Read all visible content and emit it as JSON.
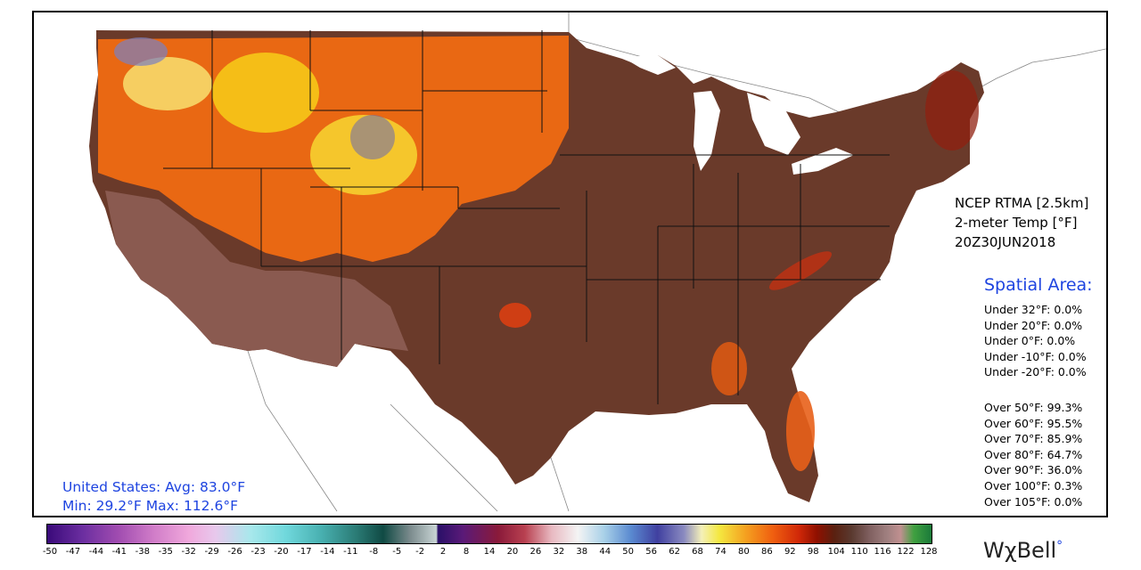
{
  "info": {
    "line1": "NCEP RTMA [2.5km]",
    "line2": "2-meter Temp [°F]",
    "line3": "20Z30JUN2018"
  },
  "spatial": {
    "title": "Spatial Area:",
    "under": [
      "Under 32°F: 0.0%",
      "Under 20°F: 0.0%",
      "Under 0°F: 0.0%",
      "Under -10°F: 0.0%",
      "Under -20°F: 0.0%"
    ],
    "over": [
      "Over 50°F: 99.3%",
      "Over 60°F: 95.5%",
      "Over 70°F: 85.9%",
      "Over 80°F: 64.7%",
      "Over 90°F: 36.0%",
      "Over 100°F: 0.3%",
      "Over 105°F: 0.0%"
    ]
  },
  "stats": {
    "avg_line": "United States: Avg:  83.0°F",
    "minmax_line": "Min:  29.2°F Max: 112.6°F"
  },
  "colorbar": {
    "ticks": [
      "-50",
      "-47",
      "-44",
      "-41",
      "-38",
      "-35",
      "-32",
      "-29",
      "-26",
      "-23",
      "-20",
      "-17",
      "-14",
      "-11",
      "-8",
      "-5",
      "-2",
      "2",
      "8",
      "14",
      "20",
      "26",
      "32",
      "38",
      "44",
      "50",
      "56",
      "62",
      "68",
      "74",
      "80",
      "86",
      "92",
      "98",
      "104",
      "110",
      "116",
      "122",
      "128"
    ]
  },
  "logo": {
    "text": "WχBell"
  },
  "colors": {
    "hot": "#6a2a16",
    "warm": "#f06010",
    "mild": "#f4c018",
    "dusty": "#8a6a60",
    "accent_blue": "#1e44e0"
  }
}
